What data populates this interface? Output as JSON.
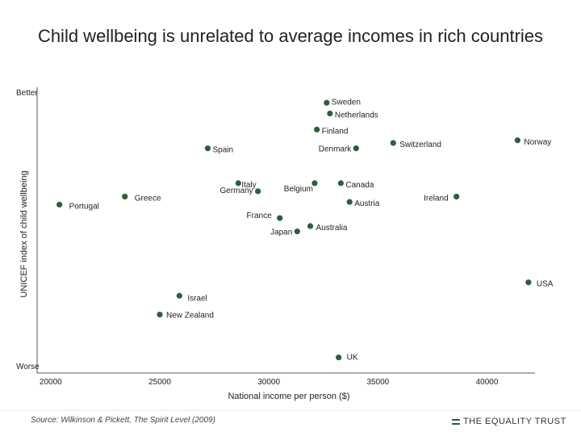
{
  "chart_data": {
    "type": "scatter",
    "title": "Child wellbeing is unrelated to average incomes in rich countries",
    "xlabel": "National income per person ($)",
    "ylabel": "UNICEF index of child wellbeing",
    "y_top_label": "Better",
    "y_bottom_label": "Worse",
    "xlim": [
      19600,
      42200
    ],
    "ylim": [
      0,
      10
    ],
    "x_ticks": [
      20000,
      25000,
      30000,
      35000,
      40000
    ],
    "point_color": "#2d5f3a",
    "points": [
      {
        "label": "Sweden",
        "x": 32650,
        "y": 9.6
      },
      {
        "label": "Netherlands",
        "x": 32800,
        "y": 9.2
      },
      {
        "label": "Finland",
        "x": 32200,
        "y": 8.6
      },
      {
        "label": "Denmark",
        "x": 34000,
        "y": 7.9
      },
      {
        "label": "Switzerland",
        "x": 35700,
        "y": 8.1
      },
      {
        "label": "Norway",
        "x": 41400,
        "y": 8.2
      },
      {
        "label": "Spain",
        "x": 27200,
        "y": 7.9
      },
      {
        "label": "Italy",
        "x": 28600,
        "y": 6.6
      },
      {
        "label": "Germany",
        "x": 29500,
        "y": 6.3
      },
      {
        "label": "Belgium",
        "x": 32100,
        "y": 6.6
      },
      {
        "label": "Canada",
        "x": 33300,
        "y": 6.6
      },
      {
        "label": "Greece",
        "x": 23400,
        "y": 6.1
      },
      {
        "label": "Portugal",
        "x": 20400,
        "y": 5.8
      },
      {
        "label": "Ireland",
        "x": 38600,
        "y": 6.1
      },
      {
        "label": "Austria",
        "x": 33700,
        "y": 5.9
      },
      {
        "label": "France",
        "x": 30500,
        "y": 5.3
      },
      {
        "label": "Australia",
        "x": 31900,
        "y": 5.0
      },
      {
        "label": "Japan",
        "x": 31300,
        "y": 4.8
      },
      {
        "label": "USA",
        "x": 41900,
        "y": 2.9
      },
      {
        "label": "Israel",
        "x": 25900,
        "y": 2.4
      },
      {
        "label": "New Zealand",
        "x": 25000,
        "y": 1.7
      },
      {
        "label": "UK",
        "x": 33200,
        "y": 0.1
      }
    ]
  },
  "footer": {
    "source": "Source: Wilkinson & Pickett, The Spirit Level (2009)",
    "brand": "THE EQUALITY TRUST"
  }
}
